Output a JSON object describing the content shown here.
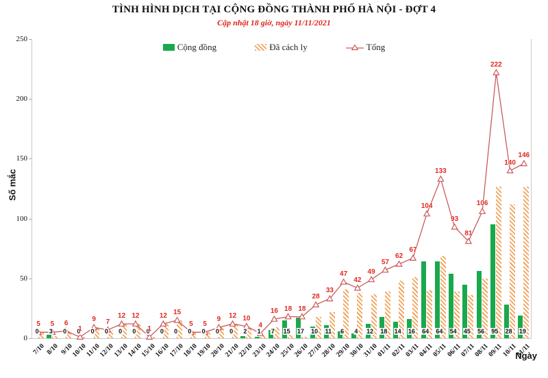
{
  "header": {
    "title": "TÌNH HÌNH DỊCH TẠI CỘNG ĐỒNG THÀNH PHỐ HÀ NỘI - ĐỢT 4",
    "subtitle": "Cập nhật 18 giờ, ngày 11/11/2021"
  },
  "colors": {
    "community_green": "#1aa84c",
    "quarantine_orange": "#f2a45f",
    "total_line_red": "#c9595a",
    "total_label_red": "#e22820",
    "subtitle_red": "#e0241b",
    "axis_gray": "#c8c8c8"
  },
  "chart_data": {
    "type": "bar",
    "title": "TÌNH HÌNH DỊCH TẠI CỘNG ĐỒNG THÀNH PHỐ HÀ NỘI - ĐỢT 4",
    "subtitle": "Cập nhật 18 giờ, ngày 11/11/2021",
    "xlabel": "Ngày",
    "ylabel": "Số mắc",
    "ylim": [
      0,
      250
    ],
    "yticks": [
      0,
      50,
      100,
      150,
      200,
      250
    ],
    "grid": false,
    "legend_position": "top",
    "legend": [
      {
        "label": "Cộng đồng",
        "type": "bar",
        "color": "#1aa84c"
      },
      {
        "label": "Đã cách ly",
        "type": "bar-hatched",
        "color": "#f2a45f"
      },
      {
        "label": "Tổng",
        "type": "line-triangle-marker",
        "color": "#c9595a"
      }
    ],
    "categories": [
      "7/10",
      "8/10",
      "9/10",
      "10/10",
      "11/10",
      "12/10",
      "13/10",
      "14/10",
      "15/10",
      "16/10",
      "17/10",
      "18/10",
      "19/10",
      "20/10",
      "21/10",
      "22/10",
      "23/10",
      "24/10",
      "25/10",
      "26/10",
      "27/10",
      "28/10",
      "29/10",
      "30/10",
      "31/10",
      "01/11",
      "02/11",
      "03/11",
      "04/11",
      "05/11",
      "06/11",
      "07/11",
      "08/11",
      "09/11",
      "10/11",
      "11/11"
    ],
    "series": [
      {
        "name": "Cộng đồng",
        "type": "bar",
        "color": "#1aa84c",
        "value_labels": "bottom",
        "values": [
          0,
          3,
          0,
          0,
          0,
          0,
          0,
          0,
          0,
          0,
          0,
          0,
          0,
          0,
          0,
          2,
          1,
          7,
          15,
          17,
          10,
          11,
          6,
          4,
          12,
          18,
          14,
          16,
          64,
          64,
          54,
          45,
          56,
          95,
          28,
          19
        ]
      },
      {
        "name": "Đã cách ly",
        "type": "bar",
        "style": "hatched",
        "color": "#f2a45f",
        "value_labels": "none",
        "values": [
          5,
          2,
          6,
          1,
          9,
          7,
          12,
          12,
          1,
          12,
          15,
          5,
          5,
          9,
          12,
          8,
          3,
          9,
          3,
          1,
          18,
          22,
          41,
          38,
          37,
          39,
          48,
          51,
          40,
          69,
          39,
          36,
          50,
          127,
          112,
          127
        ]
      },
      {
        "name": "Tổng",
        "type": "line",
        "marker": "open-triangle",
        "color": "#c9595a",
        "label_color": "#e22820",
        "value_labels": "above",
        "values": [
          5,
          5,
          6,
          1,
          9,
          7,
          12,
          12,
          1,
          12,
          15,
          5,
          5,
          9,
          12,
          10,
          4,
          16,
          18,
          18,
          28,
          33,
          47,
          42,
          49,
          57,
          62,
          67,
          104,
          133,
          93,
          81,
          106,
          222,
          140,
          146
        ]
      }
    ]
  }
}
